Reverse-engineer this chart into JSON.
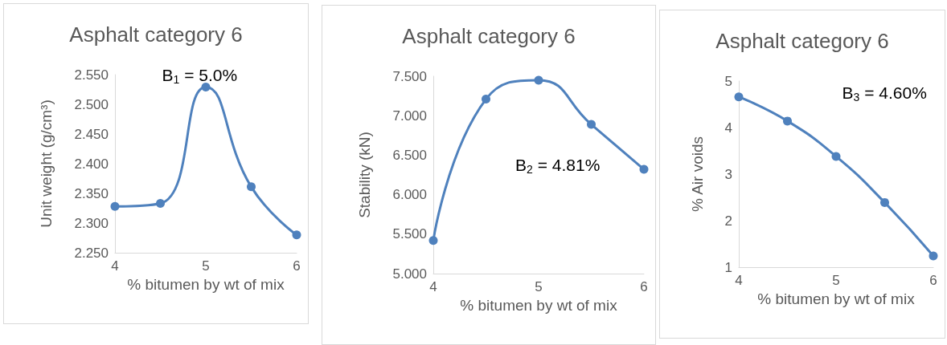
{
  "chart_data": [
    {
      "type": "line",
      "title": "Asphalt category 6",
      "xlabel": "% bitumen by wt of mix",
      "ylabel": "Unit weight (g/cm³)",
      "x": [
        4,
        4.5,
        5,
        5.5,
        6
      ],
      "series": [
        {
          "color": "#4f81bd",
          "values": [
            2.328,
            2.333,
            2.529,
            2.361,
            2.28
          ]
        }
      ],
      "xlim": [
        4,
        6
      ],
      "xticks": [
        4,
        5,
        6
      ],
      "ylim": [
        2.25,
        2.55
      ],
      "yticks": [
        {
          "value": 2.25,
          "label": "2.250"
        },
        {
          "value": 2.3,
          "label": "2.300"
        },
        {
          "value": 2.35,
          "label": "2.350"
        },
        {
          "value": 2.4,
          "label": "2.400"
        },
        {
          "value": 2.45,
          "label": "2.450"
        },
        {
          "value": 2.5,
          "label": "2.500"
        },
        {
          "value": 2.55,
          "label": "2.550"
        }
      ],
      "marker": "circle",
      "grid": false,
      "annotations": [
        "B$_{1}$ = 5.0%"
      ]
    },
    {
      "type": "line",
      "title": "Asphalt category 6",
      "xlabel": "% bitumen by wt of mix",
      "ylabel": "Stability (kN)",
      "x": [
        4,
        4.5,
        5,
        5.5,
        6
      ],
      "series": [
        {
          "color": "#4f81bd",
          "values": [
            5.42,
            7.21,
            7.45,
            6.89,
            6.32
          ]
        }
      ],
      "xlim": [
        4,
        6
      ],
      "xticks": [
        4,
        5,
        6
      ],
      "ylim": [
        5,
        7.5
      ],
      "yticks": [
        {
          "value": 5,
          "label": "5.000"
        },
        {
          "value": 5.5,
          "label": "5.500"
        },
        {
          "value": 6,
          "label": "6.000"
        },
        {
          "value": 6.5,
          "label": "6.500"
        },
        {
          "value": 7,
          "label": "7.000"
        },
        {
          "value": 7.5,
          "label": "7.500"
        }
      ],
      "marker": "circle",
      "grid": false,
      "annotations": [
        "B$_{2}$ = 4.81%"
      ]
    },
    {
      "type": "line",
      "title": "Asphalt category 6",
      "xlabel": "% bitumen by wt of mix",
      "ylabel": "% Air voids",
      "x": [
        4,
        4.5,
        5,
        5.5,
        6
      ],
      "series": [
        {
          "color": "#4f81bd",
          "values": [
            4.66,
            4.14,
            3.38,
            2.39,
            1.24
          ]
        }
      ],
      "xlim": [
        4,
        6
      ],
      "xticks": [
        4,
        5,
        6
      ],
      "ylim": [
        1,
        5
      ],
      "yticks": [
        1,
        2,
        3,
        4,
        5
      ],
      "marker": "circle",
      "grid": false,
      "annotations": [
        "B$_{3}$ = 4.60%"
      ]
    }
  ]
}
